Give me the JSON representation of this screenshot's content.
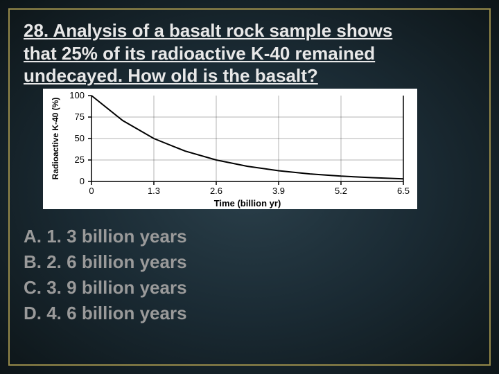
{
  "question": {
    "number": "28.",
    "text_line1": "Analysis of a basalt rock sample shows",
    "text_line2": "that 25% of its radioactive K-40 remained",
    "text_line3": "undecayed. How old is the basalt?"
  },
  "chart": {
    "type": "line",
    "background_color": "#ffffff",
    "curve_color": "#000000",
    "axis_color": "#000000",
    "ylabel": "Radioactive K-40 (%)",
    "xlabel": "Time (billion yr)",
    "xlabel_fontweight": "bold",
    "xlim": [
      0,
      6.5
    ],
    "ylim": [
      0,
      100
    ],
    "xticks": [
      0,
      1.3,
      2.6,
      3.9,
      5.2,
      6.5
    ],
    "xtick_labels": [
      "0",
      "1.3",
      "2.6",
      "3.9",
      "5.2",
      "6.5"
    ],
    "yticks": [
      0,
      25,
      50,
      75,
      100
    ],
    "ytick_labels": [
      "0",
      "25",
      "50",
      "75",
      "100"
    ],
    "curve_points": [
      {
        "x": 0,
        "y": 100
      },
      {
        "x": 0.65,
        "y": 71
      },
      {
        "x": 1.3,
        "y": 50
      },
      {
        "x": 1.95,
        "y": 35.4
      },
      {
        "x": 2.6,
        "y": 25
      },
      {
        "x": 3.25,
        "y": 17.7
      },
      {
        "x": 3.9,
        "y": 12.5
      },
      {
        "x": 4.55,
        "y": 8.8
      },
      {
        "x": 5.2,
        "y": 6.25
      },
      {
        "x": 5.85,
        "y": 4.4
      },
      {
        "x": 6.5,
        "y": 3.1
      }
    ],
    "label_fontsize": 13
  },
  "answers": {
    "a": "A. 1. 3 billion years",
    "b": "B. 2. 6 billion years",
    "c": "C. 3. 9 billion years",
    "d": "D. 4. 6 billion years"
  }
}
